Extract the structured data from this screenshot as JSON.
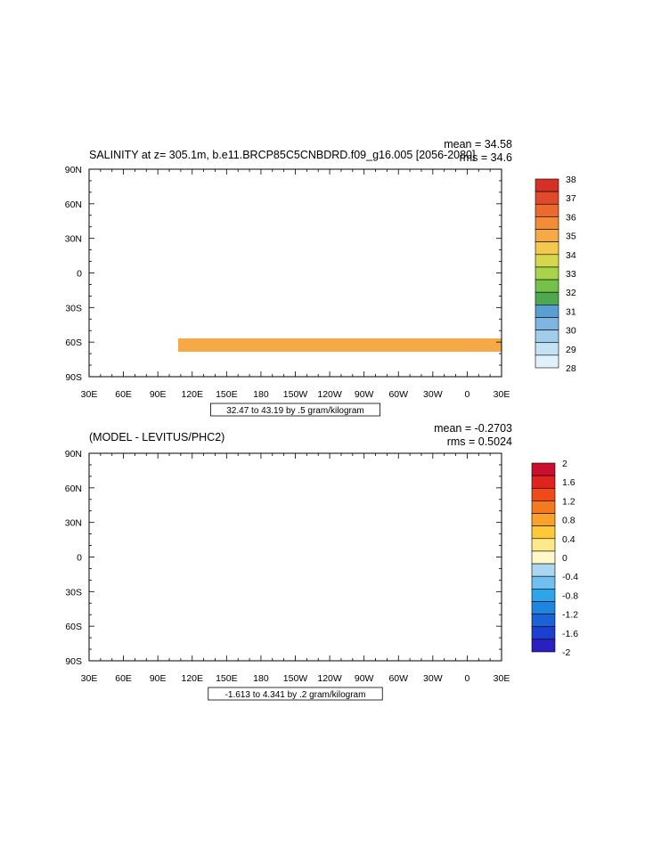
{
  "chart_data": [
    {
      "type": "heatmap",
      "title": "SALINITY at z= 305.1m, b.e11.BRCP85C5CNBDRD.f09_g16.005 [2056-2080]",
      "stat_mean": "mean = 34.58",
      "stat_rms": "rms = 34.6",
      "x_ticks": [
        "30E",
        "60E",
        "90E",
        "120E",
        "150E",
        "180",
        "150W",
        "120W",
        "90W",
        "60W",
        "30W",
        "0",
        "30E"
      ],
      "y_ticks": [
        "90N",
        "60N",
        "30N",
        "0",
        "30S",
        "60S",
        "90S"
      ],
      "xlim_deg_east": [
        30,
        390
      ],
      "ylim_deg_north": [
        -90,
        90
      ],
      "contour_info": "32.47 to 43.19 by .5 gram/kilogram",
      "colorbar_labels": [
        "38",
        "37",
        "36",
        "35",
        "34",
        "33",
        "32",
        "31",
        "30",
        "29",
        "28"
      ],
      "colorbar_colors": [
        "#d73027",
        "#e04a2a",
        "#ec6a2e",
        "#f28c37",
        "#f6aa47",
        "#f2c94e",
        "#d5d84e",
        "#a8d44b",
        "#74c24a",
        "#4fa84f",
        "#5a9fd4",
        "#7fb6e1",
        "#a2cdea",
        "#c4e2f3",
        "#e0f1fb"
      ],
      "colors": {
        "atlantic_high": "#d73027",
        "subtropical": "#f6aa47",
        "central_band": "#f2c94e",
        "southern_band": "#d5d84e",
        "north_pacific": "#d5d84e",
        "arctic": "#f28c37",
        "japan_sea": "#74c24a",
        "mediterranean": "#d73027"
      }
    },
    {
      "type": "heatmap",
      "title": "(MODEL - LEVITUS/PHC2)",
      "stat_mean": "mean = -0.2703",
      "stat_rms": "rms = 0.5024",
      "x_ticks": [
        "30E",
        "60E",
        "90E",
        "120E",
        "150E",
        "180",
        "150W",
        "120W",
        "90W",
        "60W",
        "30W",
        "0",
        "30E"
      ],
      "y_ticks": [
        "90N",
        "60N",
        "30N",
        "0",
        "30S",
        "60S",
        "90S"
      ],
      "xlim_deg_east": [
        30,
        390
      ],
      "ylim_deg_north": [
        -90,
        90
      ],
      "contour_info": "-1.613 to 4.341 by .2 gram/kilogram",
      "colorbar_labels": [
        "2",
        "1.6",
        "1.2",
        "0.8",
        "0.4",
        "0",
        "-0.4",
        "-0.8",
        "-1.2",
        "-1.6",
        "-2"
      ],
      "colorbar_colors": [
        "#c8102e",
        "#e0231f",
        "#f04a1a",
        "#f57a1f",
        "#f9a12a",
        "#fbc93a",
        "#fde98a",
        "#fff8c8",
        "#a9d6f0",
        "#6fc0ee",
        "#2ea4ea",
        "#1f86e0",
        "#1a62d6",
        "#1b3fcf",
        "#2b1fbf"
      ],
      "colors": {
        "open_ocean": "#a9d6f0",
        "negative_band": "#2ea4ea",
        "strong_negative": "#1f86e0",
        "north_atlantic_pos": "#fbc93a",
        "north_atlantic_high": "#f57a1f",
        "south_positive": "#fff8c8",
        "japan_sea": "#1b3fcf",
        "mediterranean": "#f04a1a"
      }
    }
  ]
}
